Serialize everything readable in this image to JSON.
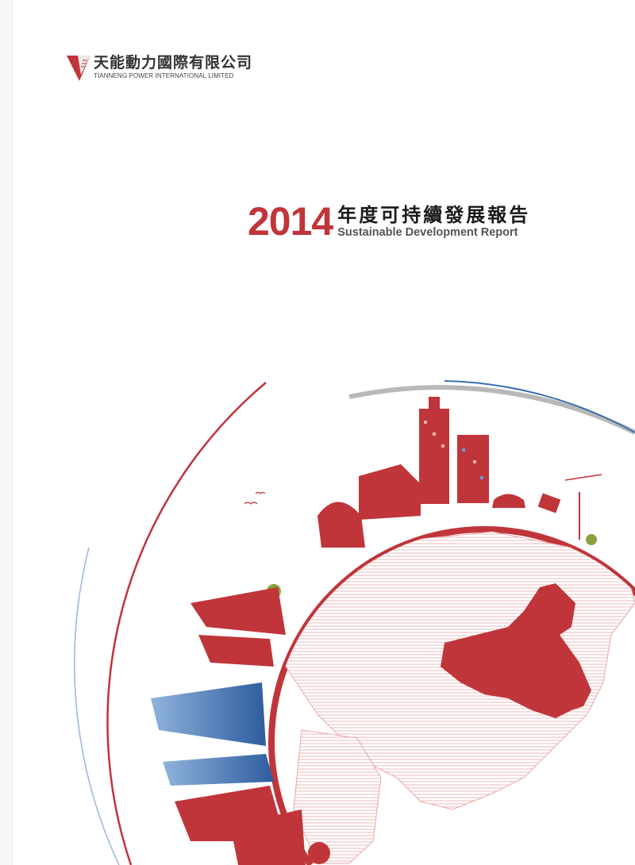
{
  "company": {
    "name_cn": "天能動力國際有限公司",
    "name_en": "TIANNENG POWER INTERNATIONAL LIMITED",
    "logo_color": "#c0353a"
  },
  "report": {
    "year": "2014",
    "title_cn": "年度可持續發展報告",
    "title_en": "Sustainable Development Report"
  },
  "colors": {
    "accent_red": "#c0353a",
    "blue": "#3a6fb0",
    "gray_arc": "#b8b8b8"
  }
}
